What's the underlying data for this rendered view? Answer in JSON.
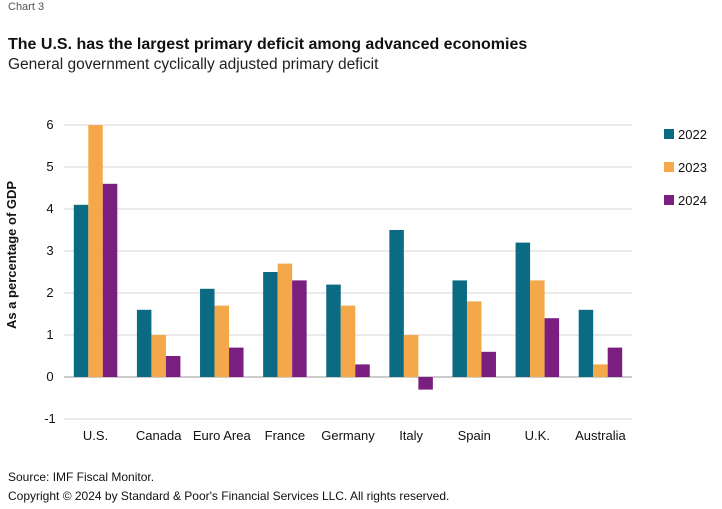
{
  "header": {
    "chart_label": "Chart 3",
    "title": "The U.S. has the largest primary deficit among advanced economies",
    "subtitle": "General government cyclically adjusted primary deficit"
  },
  "footer": {
    "source": "Source: IMF Fiscal Monitor.",
    "copyright": "Copyright © 2024 by Standard & Poor's Financial Services LLC. All rights reserved."
  },
  "chart_data": {
    "type": "bar",
    "title": "The U.S. has the largest primary deficit among advanced economies",
    "subtitle": "General government cyclically adjusted primary deficit",
    "xlabel": "",
    "ylabel": "As a percentage of GDP",
    "ylim": [
      -1,
      6
    ],
    "yticks": [
      "-1",
      "0",
      "1",
      "2",
      "3",
      "4",
      "5",
      "6"
    ],
    "grid": true,
    "legend_position": "right",
    "categories": [
      "U.S.",
      "Canada",
      "Euro Area",
      "France",
      "Germany",
      "Italy",
      "Spain",
      "U.K.",
      "Australia"
    ],
    "series": [
      {
        "name": "2022",
        "color": "#0b6b82",
        "values": [
          4.1,
          1.6,
          2.1,
          2.5,
          2.2,
          3.5,
          2.3,
          3.2,
          1.6
        ]
      },
      {
        "name": "2023",
        "color": "#f4a84a",
        "values": [
          6.0,
          1.0,
          1.7,
          2.7,
          1.7,
          1.0,
          1.8,
          2.3,
          0.3
        ]
      },
      {
        "name": "2024",
        "color": "#7a1f80",
        "values": [
          4.6,
          0.5,
          0.7,
          2.3,
          0.3,
          -0.3,
          0.6,
          1.4,
          0.7
        ]
      }
    ]
  }
}
